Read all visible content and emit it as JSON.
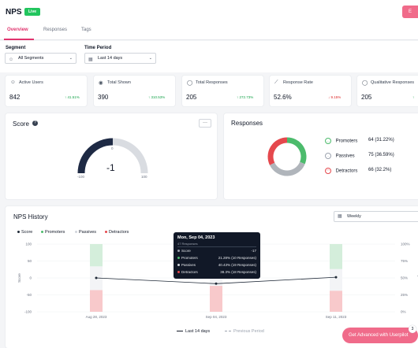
{
  "header": {
    "title": "NPS",
    "status_badge": "Live",
    "action_label": "E"
  },
  "tabs": [
    {
      "label": "Overview"
    },
    {
      "label": "Responses"
    },
    {
      "label": "Tags"
    }
  ],
  "filters": {
    "segment": {
      "label": "Segment",
      "value": "All Segments",
      "icon": "users-icon"
    },
    "time_period": {
      "label": "Time Period",
      "value": "Last 14 days",
      "icon": "calendar-icon"
    }
  },
  "stats": [
    {
      "label": "Active Users",
      "value": "842",
      "delta": "↑ 41.51%",
      "trend": "up",
      "icon": "users-icon"
    },
    {
      "label": "Total Shown",
      "value": "390",
      "delta": "↑ 310.53%",
      "trend": "up",
      "icon": "eye-icon"
    },
    {
      "label": "Total Responses",
      "value": "205",
      "delta": "↑ 272.73%",
      "trend": "up",
      "icon": "chat-icon"
    },
    {
      "label": "Response Rate",
      "value": "52.6%",
      "delta": "↓ 9.15%",
      "trend": "down",
      "icon": "trend-icon"
    },
    {
      "label": "Qualitative Responses",
      "value": "205",
      "delta": "↑",
      "trend": "up",
      "icon": "message-icon"
    }
  ],
  "score": {
    "title": "Score",
    "value": "-1",
    "gauge_min": "-100",
    "gauge_max": "100",
    "gauge_zero": "0",
    "more_label": "···"
  },
  "responses": {
    "title": "Responses",
    "items": [
      {
        "label": "Promoters",
        "count": "64 (31.22%)",
        "color": "#4cbb6c",
        "share": 31.22
      },
      {
        "label": "Passives",
        "count": "75 (36.59%)",
        "color": "#b0b5bb",
        "share": 36.59
      },
      {
        "label": "Detractors",
        "count": "66 (32.2%)",
        "color": "#e5484d",
        "share": 32.2
      }
    ]
  },
  "history": {
    "title": "NPS History",
    "granularity": "Weekly",
    "legend": [
      {
        "label": "Score",
        "color": "#1f2937"
      },
      {
        "label": "Promoters",
        "color": "#4cbb6c"
      },
      {
        "label": "Passives",
        "color": "#d1d5db"
      },
      {
        "label": "Detractors",
        "color": "#e5484d"
      }
    ],
    "y_left_label": "Score",
    "y_right_label": "Responses",
    "y_left_ticks": [
      "100",
      "50",
      "0",
      "-50",
      "-100"
    ],
    "y_right_ticks": [
      "100%",
      "75%",
      "50%",
      "25%",
      "0%"
    ],
    "bottom_legend": {
      "current": "Last 14 days",
      "previous": "Previous Period"
    },
    "tooltip": {
      "date": "Mon, Sep 04, 2023",
      "sub": "47 Responses",
      "rows": [
        {
          "label": "Score",
          "value": "-17",
          "color": "#9ca3af"
        },
        {
          "label": "Promoters",
          "value": "21.28% (10 Responses)",
          "color": "#4cbb6c"
        },
        {
          "label": "Passives",
          "value": "40.43% (19 Responses)",
          "color": "#d1d5db"
        },
        {
          "label": "Detractors",
          "value": "38.3% (18 Responses)",
          "color": "#e5484d"
        }
      ]
    }
  },
  "chart_data": {
    "type": "line",
    "title": "NPS History",
    "x": [
      "Aug 28, 2023",
      "Sep 04, 2023",
      "Sep 11, 2023"
    ],
    "ylim": [
      -100,
      100
    ],
    "y2lim": [
      0,
      100
    ],
    "ylabel": "Score",
    "y2label": "Responses",
    "series": [
      {
        "name": "Score",
        "values": [
          0,
          -17,
          2
        ]
      },
      {
        "name": "Promoters",
        "values": [
          33,
          21.28,
          37
        ]
      },
      {
        "name": "Passives",
        "values": [
          35,
          40.43,
          32
        ]
      },
      {
        "name": "Detractors",
        "values": [
          32,
          38.3,
          31
        ]
      }
    ]
  },
  "cta": {
    "label": "Get Advanced with Userpilot",
    "count": "3"
  }
}
